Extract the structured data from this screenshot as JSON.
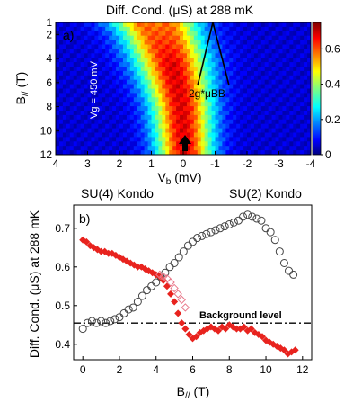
{
  "chart_data": [
    {
      "type": "heatmap",
      "panel_label": "a)",
      "title": "Diff. Cond. (μS) at 288 mK",
      "xlabel": "Vb (mV)",
      "ylabel": "B// (T)",
      "xlim": [
        4,
        -4
      ],
      "ylim": [
        12,
        1
      ],
      "x_ticks": [
        "4",
        "3",
        "2",
        "1",
        "0",
        "-1",
        "-2",
        "-3",
        "-4"
      ],
      "y_ticks": [
        "1",
        "2",
        "4",
        "6",
        "8",
        "10",
        "12"
      ],
      "colorbar": {
        "range": [
          0,
          0.75
        ],
        "ticks": [
          "0.6",
          "0.4",
          "0.2",
          "0"
        ]
      },
      "annotations": {
        "gate": "Vg = 450 mV",
        "zeeman": "2g*μBB"
      },
      "ridge": [
        {
          "B": 1,
          "center": 0.9,
          "width": 1.3
        },
        {
          "B": 2,
          "center": 0.7,
          "width": 1.2
        },
        {
          "B": 4,
          "center": 0.4,
          "width": 1.15
        },
        {
          "B": 6,
          "center": 0.2,
          "width": 1.05
        },
        {
          "B": 8,
          "center": 0.05,
          "width": 0.95
        },
        {
          "B": 10,
          "center": 0.0,
          "width": 0.9
        },
        {
          "B": 12,
          "center": -0.05,
          "width": 0.85
        }
      ]
    },
    {
      "type": "scatter",
      "panel_label": "b)",
      "xlabel": "B// (T)",
      "ylabel": "Diff. Cond. (μS) at 288 mK",
      "xlim": [
        -0.5,
        12.5
      ],
      "ylim": [
        0.36,
        0.76
      ],
      "x_ticks": [
        0,
        2,
        4,
        6,
        8,
        10,
        12
      ],
      "y_ticks": [
        0.4,
        0.5,
        0.6,
        0.7
      ],
      "top_labels": {
        "left": "SU(4) Kondo",
        "right": "SU(2) Kondo"
      },
      "background": {
        "label": "Background level",
        "value": 0.455
      },
      "series": [
        {
          "marker": "open-circle",
          "color": "#444444",
          "x": [
            0,
            0.25,
            0.5,
            0.75,
            1.0,
            1.25,
            1.5,
            1.75,
            2.0,
            2.25,
            2.5,
            2.75,
            3.0,
            3.25,
            3.5,
            3.75,
            4.0,
            4.25,
            4.5,
            4.75,
            5.0,
            5.25,
            5.5,
            5.75,
            6.0,
            6.25,
            6.5,
            6.75,
            7.0,
            7.25,
            7.5,
            7.75,
            8.0,
            8.25,
            8.5,
            8.75,
            9.0,
            9.25,
            9.5,
            9.75,
            10.0,
            10.25,
            10.5,
            10.75,
            11.0,
            11.25,
            11.5
          ],
          "y": [
            0.44,
            0.455,
            0.46,
            0.455,
            0.46,
            0.455,
            0.46,
            0.465,
            0.47,
            0.48,
            0.49,
            0.495,
            0.51,
            0.525,
            0.54,
            0.55,
            0.56,
            0.575,
            0.585,
            0.6,
            0.61,
            0.625,
            0.64,
            0.655,
            0.665,
            0.675,
            0.68,
            0.685,
            0.69,
            0.695,
            0.7,
            0.705,
            0.71,
            0.715,
            0.72,
            0.73,
            0.735,
            0.73,
            0.725,
            0.72,
            0.7,
            0.69,
            0.67,
            0.64,
            0.61,
            0.59,
            0.58
          ]
        },
        {
          "marker": "filled-diamond",
          "color": "#e8231e",
          "x": [
            0,
            0.2,
            0.4,
            0.6,
            0.8,
            1.0,
            1.2,
            1.4,
            1.6,
            1.8,
            2.0,
            2.2,
            2.4,
            2.6,
            2.8,
            3.0,
            3.2,
            3.4,
            3.6,
            3.8,
            4.0,
            4.2,
            4.4,
            4.6,
            4.8,
            5.0,
            5.2,
            5.4,
            5.6,
            5.8,
            6.0,
            6.2,
            6.4,
            6.6,
            6.8,
            7.0,
            7.2,
            7.4,
            7.6,
            7.8,
            8.0,
            8.2,
            8.4,
            8.6,
            8.8,
            9.0,
            9.2,
            9.4,
            9.6,
            9.8,
            10.0,
            10.2,
            10.4,
            10.6,
            10.8,
            11.0,
            11.2,
            11.4,
            11.6
          ],
          "y": [
            0.67,
            0.665,
            0.655,
            0.65,
            0.645,
            0.64,
            0.64,
            0.635,
            0.635,
            0.63,
            0.625,
            0.62,
            0.615,
            0.61,
            0.605,
            0.6,
            0.6,
            0.595,
            0.59,
            0.585,
            0.58,
            0.575,
            0.565,
            0.55,
            0.53,
            0.51,
            0.48,
            0.455,
            0.44,
            0.425,
            0.415,
            0.42,
            0.43,
            0.435,
            0.44,
            0.445,
            0.44,
            0.435,
            0.445,
            0.44,
            0.45,
            0.445,
            0.44,
            0.44,
            0.445,
            0.435,
            0.44,
            0.43,
            0.425,
            0.42,
            0.41,
            0.405,
            0.4,
            0.395,
            0.39,
            0.385,
            0.375,
            0.38,
            0.385
          ]
        },
        {
          "marker": "open-diamond",
          "color": "#e8788a",
          "x": [
            4.2,
            4.4,
            4.6,
            4.8,
            5.0,
            5.2,
            5.4,
            5.6
          ],
          "y": [
            0.58,
            0.575,
            0.57,
            0.56,
            0.545,
            0.53,
            0.515,
            0.495
          ]
        }
      ]
    }
  ]
}
